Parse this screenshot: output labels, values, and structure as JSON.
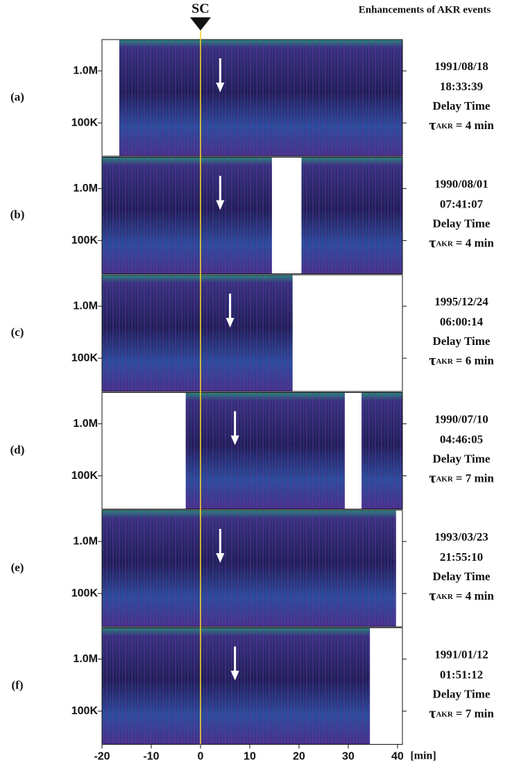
{
  "chart_data": {
    "type": "spectrogram",
    "title": "Enhancements of AKR events",
    "marker_label": "SC",
    "marker_x": 0,
    "marker_color": "#f2d12a",
    "x_unit": "[min]",
    "xlim": [
      -20,
      41
    ],
    "xticks": [
      -20,
      -10,
      0,
      10,
      20,
      30,
      40
    ],
    "log_y": true,
    "ylim": [
      23000,
      4000000
    ],
    "yticks": [
      {
        "value": 1000000,
        "label": "1.0M"
      },
      {
        "value": 100000,
        "label": "100K"
      }
    ],
    "panels": [
      {
        "label": "(a)",
        "date": "1991/08/18",
        "time": "18:33:39",
        "delay_text": "Delay Time",
        "tau_symbol": "τ",
        "tau_subscript": "AKR",
        "delay": 4,
        "delay_label": "= 4 min",
        "gaps": [
          [
            -20,
            -16.5
          ]
        ]
      },
      {
        "label": "(b)",
        "date": "1990/08/01",
        "time": "07:41:07",
        "delay_text": "Delay Time",
        "tau_symbol": "τ",
        "tau_subscript": "AKR",
        "delay": 4,
        "delay_label": "= 4 min",
        "gaps": [
          [
            14.5,
            20.5
          ]
        ]
      },
      {
        "label": "(c)",
        "date": "1995/12/24",
        "time": "06:00:14",
        "delay_text": "Delay Time",
        "tau_symbol": "τ",
        "tau_subscript": "AKR",
        "delay": 6,
        "delay_label": "= 6 min",
        "gaps": [
          [
            18.7,
            41
          ]
        ]
      },
      {
        "label": "(d)",
        "date": "1990/07/10",
        "time": "04:46:05",
        "delay_text": "Delay Time",
        "tau_symbol": "τ",
        "tau_subscript": "AKR",
        "delay": 7,
        "delay_label": "= 7 min",
        "gaps": [
          [
            -20,
            -3
          ],
          [
            29.3,
            32.7
          ]
        ]
      },
      {
        "label": "(e)",
        "date": "1993/03/23",
        "time": "21:55:10",
        "delay_text": "Delay Time",
        "tau_symbol": "τ",
        "tau_subscript": "AKR",
        "delay": 4,
        "delay_label": "= 4 min",
        "gaps": [
          [
            39.7,
            41
          ]
        ]
      },
      {
        "label": "(f)",
        "date": "1991/01/12",
        "time": "01:51:12",
        "delay_text": "Delay Time",
        "tau_symbol": "τ",
        "tau_subscript": "AKR",
        "delay": 7,
        "delay_label": "= 7 min",
        "gaps": [
          [
            34.4,
            41
          ]
        ]
      }
    ]
  }
}
